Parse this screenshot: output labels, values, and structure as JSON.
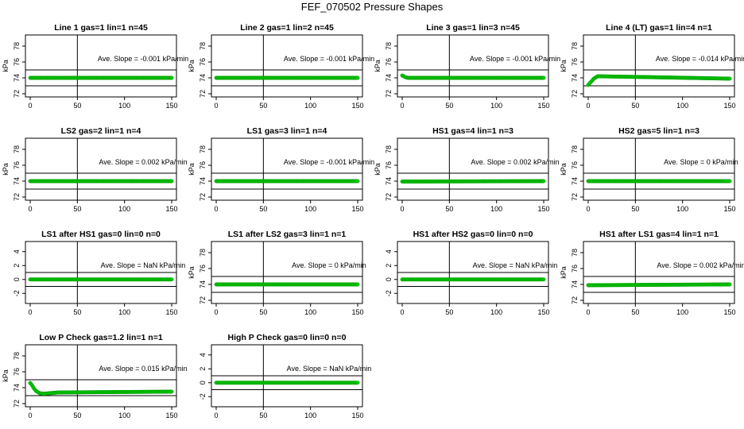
{
  "page_title": "FEF_070502  Pressure Shapes",
  "colors": {
    "points": "#00cc00",
    "point_edge": "#009900",
    "axes": "#000000"
  },
  "chart_data": [
    {
      "type": "scatter",
      "title": "Line 1 gas=1 lin=1 n=45",
      "ylabel": "kPa",
      "annotation": "Ave. Slope = -0.001  kPa/min",
      "xlim": [
        0,
        150
      ],
      "ylim": [
        72,
        79
      ],
      "xticks": [
        0,
        50,
        100,
        150
      ],
      "yticks": [
        72,
        74,
        76,
        78
      ],
      "hlines": [
        73,
        75
      ],
      "vline": 50,
      "series": [
        {
          "x": [
            0,
            150
          ],
          "y": [
            74,
            74
          ]
        }
      ]
    },
    {
      "type": "scatter",
      "title": "Line 2 gas=1 lin=2 n=45",
      "ylabel": "kPa",
      "annotation": "Ave. Slope = -0.001  kPa/min",
      "xlim": [
        0,
        150
      ],
      "ylim": [
        72,
        79
      ],
      "xticks": [
        0,
        50,
        100,
        150
      ],
      "yticks": [
        72,
        74,
        76,
        78
      ],
      "hlines": [
        73,
        75
      ],
      "vline": 50,
      "series": [
        {
          "x": [
            0,
            150
          ],
          "y": [
            74,
            74
          ]
        }
      ]
    },
    {
      "type": "scatter",
      "title": "Line 3 gas=1 lin=3 n=45",
      "ylabel": "kPa",
      "annotation": "Ave. Slope = -0.001  kPa/min",
      "xlim": [
        0,
        150
      ],
      "ylim": [
        72,
        79
      ],
      "xticks": [
        0,
        50,
        100,
        150
      ],
      "yticks": [
        72,
        74,
        76,
        78
      ],
      "hlines": [
        73,
        75
      ],
      "vline": 50,
      "series": [
        {
          "x": [
            0,
            3,
            6,
            150
          ],
          "y": [
            74.3,
            74.1,
            74,
            74
          ]
        }
      ]
    },
    {
      "type": "scatter",
      "title": "Line 4 (LT) gas=1 lin=4 n=1",
      "ylabel": "kPa",
      "annotation": "Ave. Slope = -0.014  kPa/min",
      "xlim": [
        0,
        150
      ],
      "ylim": [
        72,
        79
      ],
      "xticks": [
        0,
        50,
        100,
        150
      ],
      "yticks": [
        72,
        74,
        76,
        78
      ],
      "hlines": [
        73,
        75
      ],
      "vline": 50,
      "series": [
        {
          "x": [
            0,
            3,
            6,
            10,
            60,
            150
          ],
          "y": [
            73.1,
            73.5,
            73.9,
            74.2,
            74.1,
            73.9
          ]
        }
      ]
    },
    {
      "type": "scatter",
      "title": "LS2 gas=2 lin=1 n=4",
      "ylabel": "kPa",
      "annotation": "Ave. Slope = 0.002  kPa/min",
      "xlim": [
        0,
        150
      ],
      "ylim": [
        72,
        79
      ],
      "xticks": [
        0,
        50,
        100,
        150
      ],
      "yticks": [
        72,
        74,
        76,
        78
      ],
      "hlines": [
        73,
        75
      ],
      "vline": 50,
      "series": [
        {
          "x": [
            0,
            150
          ],
          "y": [
            74,
            74
          ]
        }
      ]
    },
    {
      "type": "scatter",
      "title": "LS1 gas=3 lin=1 n=4",
      "ylabel": "kPa",
      "annotation": "Ave. Slope = -0.001  kPa/min",
      "xlim": [
        0,
        150
      ],
      "ylim": [
        72,
        79
      ],
      "xticks": [
        0,
        50,
        100,
        150
      ],
      "yticks": [
        72,
        74,
        76,
        78
      ],
      "hlines": [
        73,
        75
      ],
      "vline": 50,
      "series": [
        {
          "x": [
            0,
            150
          ],
          "y": [
            74,
            74
          ]
        }
      ]
    },
    {
      "type": "scatter",
      "title": "HS1 gas=4 lin=1 n=3",
      "ylabel": "kPa",
      "annotation": "Ave. Slope = 0.002  kPa/min",
      "xlim": [
        0,
        150
      ],
      "ylim": [
        72,
        79
      ],
      "xticks": [
        0,
        50,
        100,
        150
      ],
      "yticks": [
        72,
        74,
        76,
        78
      ],
      "hlines": [
        73,
        75
      ],
      "vline": 50,
      "series": [
        {
          "x": [
            0,
            150
          ],
          "y": [
            73.95,
            74
          ]
        }
      ]
    },
    {
      "type": "scatter",
      "title": "HS2 gas=5 lin=1 n=3",
      "ylabel": "kPa",
      "annotation": "Ave. Slope = 0  kPa/min",
      "xlim": [
        0,
        150
      ],
      "ylim": [
        72,
        79
      ],
      "xticks": [
        0,
        50,
        100,
        150
      ],
      "yticks": [
        72,
        74,
        76,
        78
      ],
      "hlines": [
        73,
        75
      ],
      "vline": 50,
      "series": [
        {
          "x": [
            0,
            150
          ],
          "y": [
            74,
            74
          ]
        }
      ]
    },
    {
      "type": "scatter",
      "title": "LS1 after HS1 gas=0 lin=0 n=0",
      "ylabel": "",
      "annotation": "Ave. Slope = NaN  kPa/min",
      "xlim": [
        0,
        150
      ],
      "ylim": [
        -3,
        5
      ],
      "xticks": [
        0,
        50,
        100,
        150
      ],
      "yticks": [
        -2,
        0,
        2,
        4
      ],
      "hlines": [
        -1,
        1
      ],
      "vline": 50,
      "series": [
        {
          "x": [
            0,
            150
          ],
          "y": [
            0,
            0
          ]
        }
      ]
    },
    {
      "type": "scatter",
      "title": "LS1 after LS2 gas=3 lin=1 n=1",
      "ylabel": "kPa",
      "annotation": "Ave. Slope = 0  kPa/min",
      "xlim": [
        0,
        150
      ],
      "ylim": [
        72,
        79
      ],
      "xticks": [
        0,
        50,
        100,
        150
      ],
      "yticks": [
        72,
        74,
        76,
        78
      ],
      "hlines": [
        73,
        75
      ],
      "vline": 50,
      "series": [
        {
          "x": [
            0,
            150
          ],
          "y": [
            74,
            74
          ]
        }
      ]
    },
    {
      "type": "scatter",
      "title": "HS1 after HS2 gas=0 lin=0 n=0",
      "ylabel": "",
      "annotation": "Ave. Slope = NaN  kPa/min",
      "xlim": [
        0,
        150
      ],
      "ylim": [
        -3,
        5
      ],
      "xticks": [
        0,
        50,
        100,
        150
      ],
      "yticks": [
        -2,
        0,
        2,
        4
      ],
      "hlines": [
        -1,
        1
      ],
      "vline": 50,
      "series": [
        {
          "x": [
            0,
            150
          ],
          "y": [
            0,
            0
          ]
        }
      ]
    },
    {
      "type": "scatter",
      "title": "HS1 after LS1 gas=4 lin=1 n=1",
      "ylabel": "kPa",
      "annotation": "Ave. Slope = 0.002  kPa/min",
      "xlim": [
        0,
        150
      ],
      "ylim": [
        72,
        79
      ],
      "xticks": [
        0,
        50,
        100,
        150
      ],
      "yticks": [
        72,
        74,
        76,
        78
      ],
      "hlines": [
        73,
        75
      ],
      "vline": 50,
      "series": [
        {
          "x": [
            0,
            150
          ],
          "y": [
            73.9,
            74
          ]
        }
      ]
    },
    {
      "type": "scatter",
      "title": "Low P Check gas=1.2 lin=1 n=1",
      "ylabel": "kPa",
      "annotation": "Ave. Slope = 0.015  kPa/min",
      "xlim": [
        0,
        150
      ],
      "ylim": [
        72,
        79
      ],
      "xticks": [
        0,
        50,
        100,
        150
      ],
      "yticks": [
        72,
        74,
        76,
        78
      ],
      "hlines": [
        73,
        75
      ],
      "vline": 50,
      "series": [
        {
          "x": [
            0,
            2,
            4,
            6,
            10,
            15,
            20,
            30,
            150
          ],
          "y": [
            74.6,
            74.3,
            73.9,
            73.6,
            73.3,
            73.25,
            73.3,
            73.4,
            73.5
          ]
        }
      ]
    },
    {
      "type": "scatter",
      "title": "High P Check gas=0 lin=0 n=0",
      "ylabel": "",
      "annotation": "Ave. Slope = NaN  kPa/min",
      "xlim": [
        0,
        150
      ],
      "ylim": [
        -3,
        5
      ],
      "xticks": [
        0,
        50,
        100,
        150
      ],
      "yticks": [
        -2,
        0,
        2,
        4
      ],
      "hlines": [
        -1,
        1
      ],
      "vline": 50,
      "series": [
        {
          "x": [
            0,
            150
          ],
          "y": [
            0,
            0
          ]
        }
      ]
    }
  ]
}
